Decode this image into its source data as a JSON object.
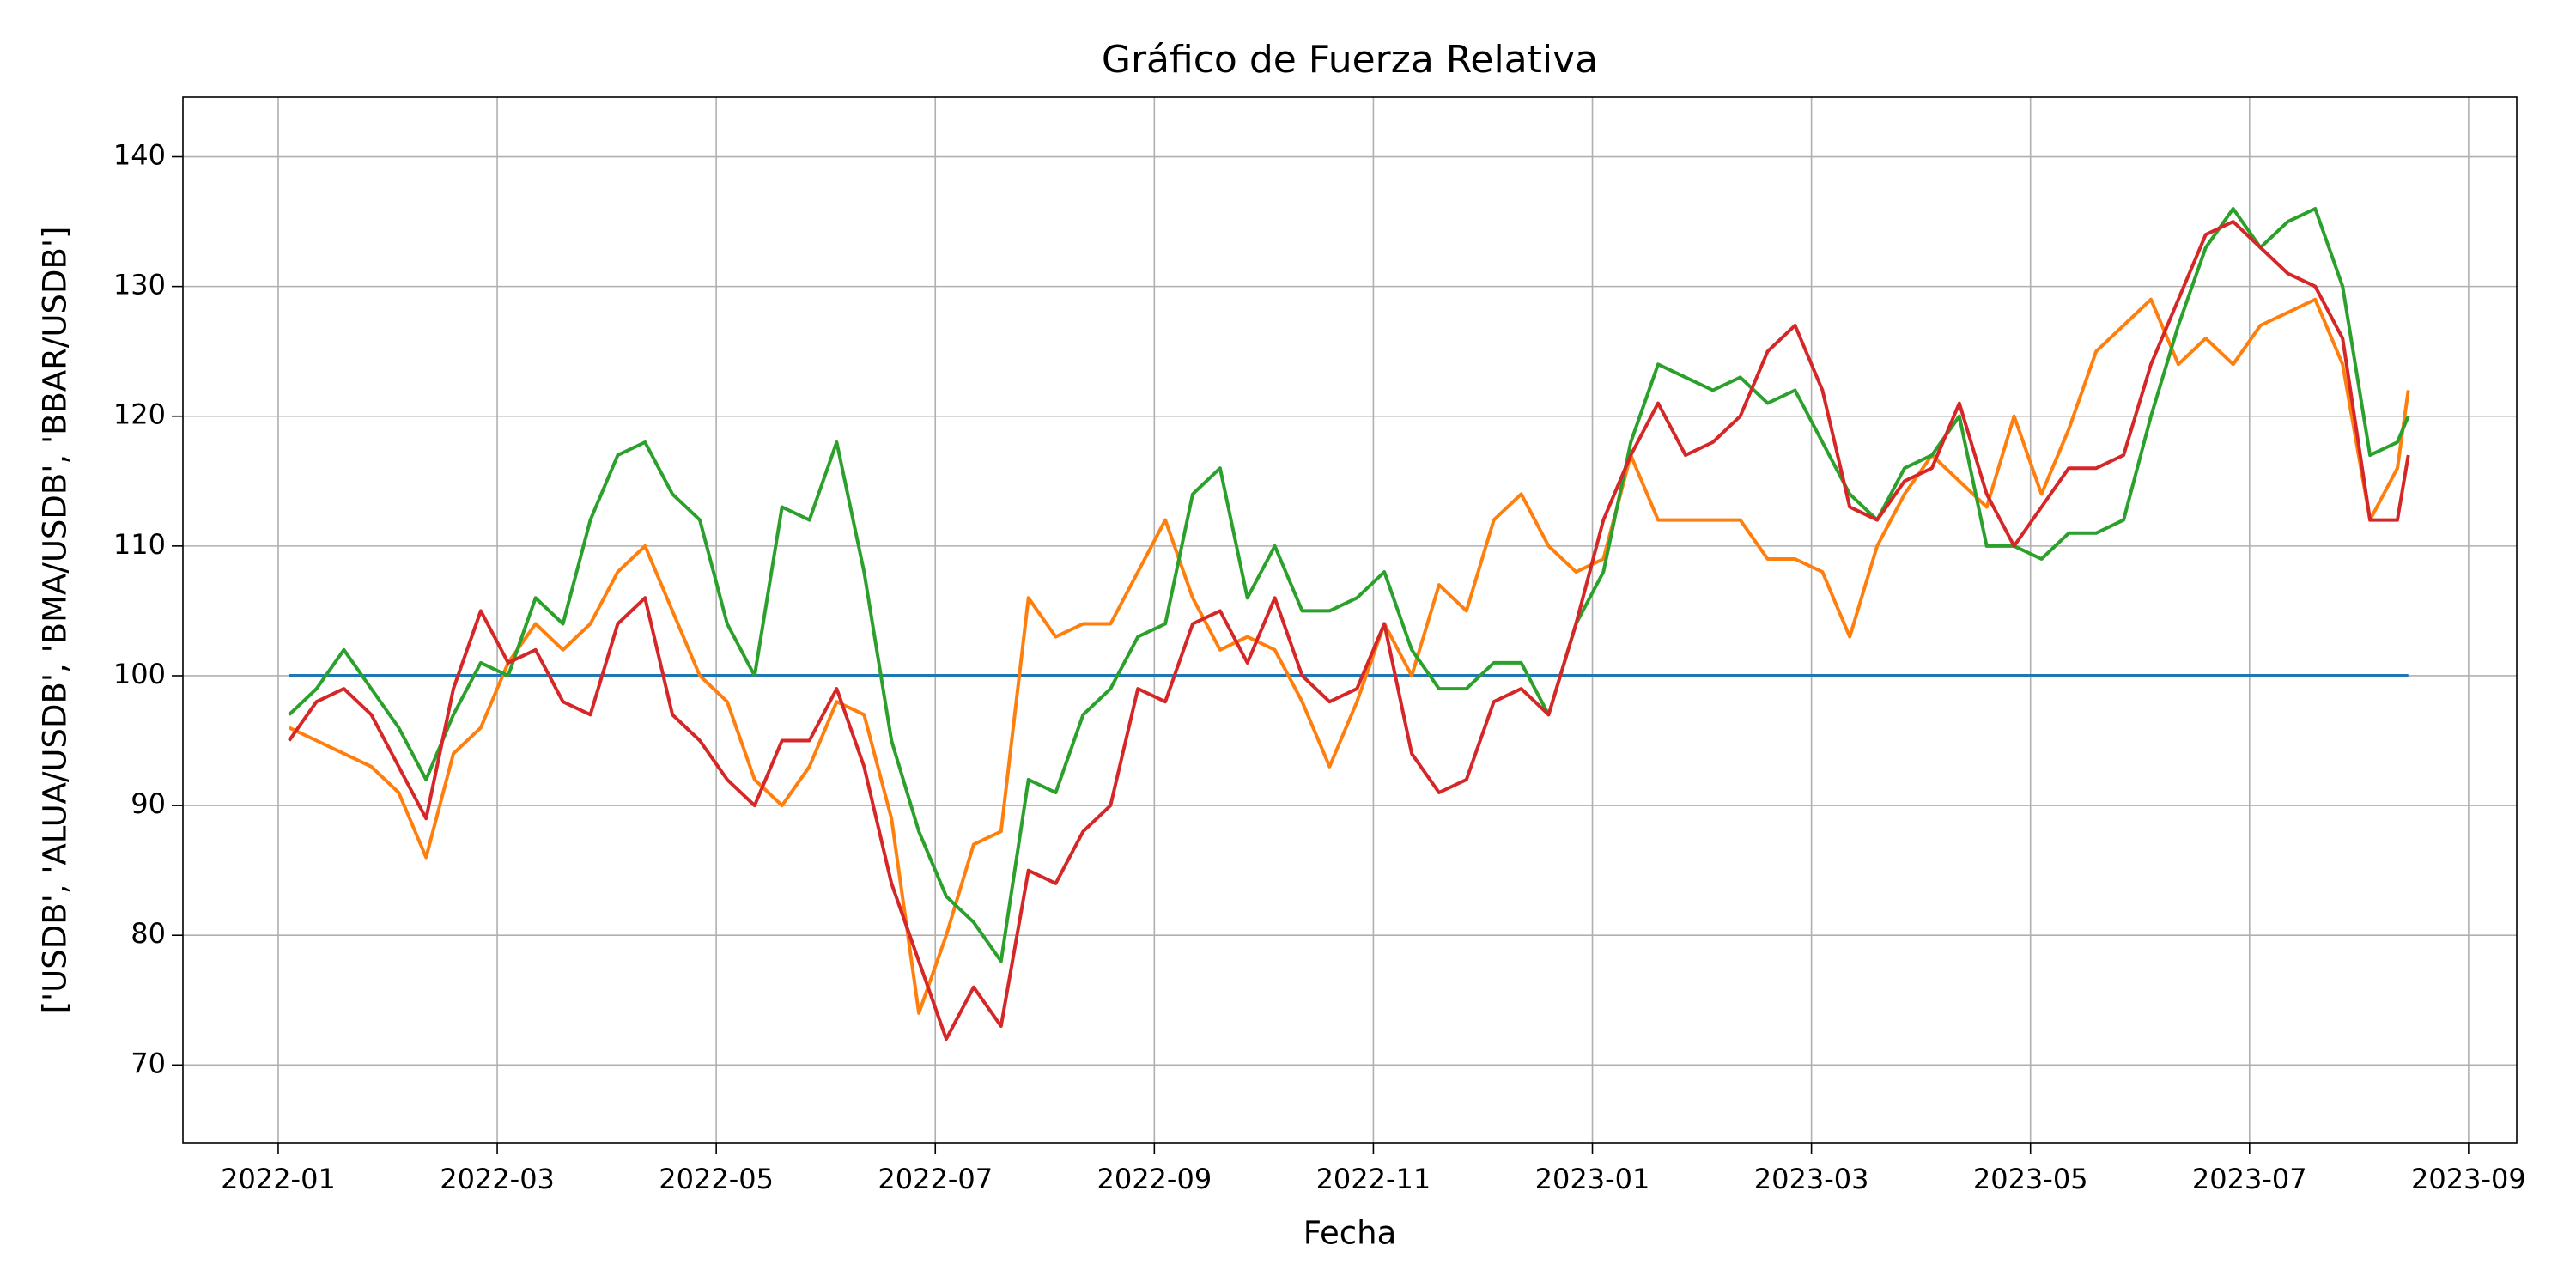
{
  "chart_data": {
    "type": "line",
    "title": "Gráfico de Fuerza Relativa",
    "xlabel": "Fecha",
    "ylabel": "['USDB', 'ALUA/USDB', 'BMA/USDB', 'BBAR/USDB']",
    "grid": true,
    "xlim": [
      -0.87,
      20.44
    ],
    "xticks": [
      {
        "value": 0,
        "label": "2022-01"
      },
      {
        "value": 2,
        "label": "2022-03"
      },
      {
        "value": 4,
        "label": "2022-05"
      },
      {
        "value": 6,
        "label": "2022-07"
      },
      {
        "value": 8,
        "label": "2022-09"
      },
      {
        "value": 10,
        "label": "2022-11"
      },
      {
        "value": 12,
        "label": "2023-01"
      },
      {
        "value": 14,
        "label": "2023-03"
      },
      {
        "value": 16,
        "label": "2023-05"
      },
      {
        "value": 18,
        "label": "2023-07"
      },
      {
        "value": 20,
        "label": "2023-09"
      }
    ],
    "ylim": [
      64,
      144.6
    ],
    "yticks": [
      70,
      80,
      90,
      100,
      110,
      120,
      130,
      140
    ],
    "x": [
      0.1,
      0.35,
      0.6,
      0.85,
      1.1,
      1.35,
      1.6,
      1.85,
      2.1,
      2.35,
      2.6,
      2.85,
      3.1,
      3.35,
      3.6,
      3.85,
      4.1,
      4.35,
      4.6,
      4.85,
      5.1,
      5.35,
      5.6,
      5.85,
      6.1,
      6.35,
      6.6,
      6.85,
      7.1,
      7.35,
      7.6,
      7.85,
      8.1,
      8.35,
      8.6,
      8.85,
      9.1,
      9.35,
      9.6,
      9.85,
      10.1,
      10.35,
      10.6,
      10.85,
      11.1,
      11.35,
      11.6,
      11.85,
      12.1,
      12.35,
      12.6,
      12.85,
      13.1,
      13.35,
      13.6,
      13.85,
      14.1,
      14.35,
      14.6,
      14.85,
      15.1,
      15.35,
      15.6,
      15.85,
      16.1,
      16.35,
      16.6,
      16.85,
      17.1,
      17.35,
      17.6,
      17.85,
      18.1,
      18.35,
      18.6,
      18.85,
      19.1,
      19.35,
      19.45
    ],
    "series": [
      {
        "color": "#1f77b4",
        "values": [
          100,
          100,
          100,
          100,
          100,
          100,
          100,
          100,
          100,
          100,
          100,
          100,
          100,
          100,
          100,
          100,
          100,
          100,
          100,
          100,
          100,
          100,
          100,
          100,
          100,
          100,
          100,
          100,
          100,
          100,
          100,
          100,
          100,
          100,
          100,
          100,
          100,
          100,
          100,
          100,
          100,
          100,
          100,
          100,
          100,
          100,
          100,
          100,
          100,
          100,
          100,
          100,
          100,
          100,
          100,
          100,
          100,
          100,
          100,
          100,
          100,
          100,
          100,
          100,
          100,
          100,
          100,
          100,
          100,
          100,
          100,
          100,
          100,
          100,
          100,
          100,
          100,
          100,
          100
        ]
      },
      {
        "color": "#ff7f0e",
        "values": [
          96,
          95,
          94,
          93,
          91,
          86,
          94,
          96,
          101,
          104,
          102,
          104,
          108,
          110,
          105,
          100,
          98,
          92,
          90,
          93,
          98,
          97,
          89,
          74,
          80,
          87,
          88,
          106,
          103,
          104,
          104,
          108,
          112,
          106,
          102,
          103,
          102,
          98,
          93,
          98,
          104,
          100,
          107,
          105,
          112,
          114,
          110,
          108,
          109,
          117,
          112,
          112,
          112,
          112,
          109,
          109,
          108,
          103,
          110,
          114,
          117,
          115,
          113,
          120,
          114,
          119,
          125,
          127,
          129,
          124,
          126,
          124,
          127,
          128,
          129,
          124,
          112,
          116,
          122
        ]
      },
      {
        "color": "#2ca02c",
        "values": [
          97,
          99,
          102,
          99,
          96,
          92,
          97,
          101,
          100,
          106,
          104,
          112,
          117,
          118,
          114,
          112,
          104,
          100,
          113,
          112,
          118,
          108,
          95,
          88,
          83,
          81,
          78,
          92,
          91,
          97,
          99,
          103,
          104,
          114,
          116,
          106,
          110,
          105,
          105,
          106,
          108,
          102,
          99,
          99,
          101,
          101,
          97,
          104,
          108,
          118,
          124,
          123,
          122,
          123,
          121,
          122,
          118,
          114,
          112,
          116,
          117,
          120,
          110,
          110,
          109,
          111,
          111,
          112,
          120,
          127,
          133,
          136,
          133,
          135,
          136,
          130,
          117,
          118,
          120
        ]
      },
      {
        "color": "#d62728",
        "values": [
          95,
          98,
          99,
          97,
          93,
          89,
          99,
          105,
          101,
          102,
          98,
          97,
          104,
          106,
          97,
          95,
          92,
          90,
          95,
          95,
          99,
          93,
          84,
          78,
          72,
          76,
          73,
          85,
          84,
          88,
          90,
          99,
          98,
          104,
          105,
          101,
          106,
          100,
          98,
          99,
          104,
          94,
          91,
          92,
          98,
          99,
          97,
          104,
          112,
          117,
          121,
          117,
          118,
          120,
          125,
          127,
          122,
          113,
          112,
          115,
          116,
          121,
          114,
          110,
          113,
          116,
          116,
          117,
          124,
          129,
          134,
          135,
          133,
          131,
          130,
          126,
          112,
          112,
          117
        ]
      }
    ]
  }
}
